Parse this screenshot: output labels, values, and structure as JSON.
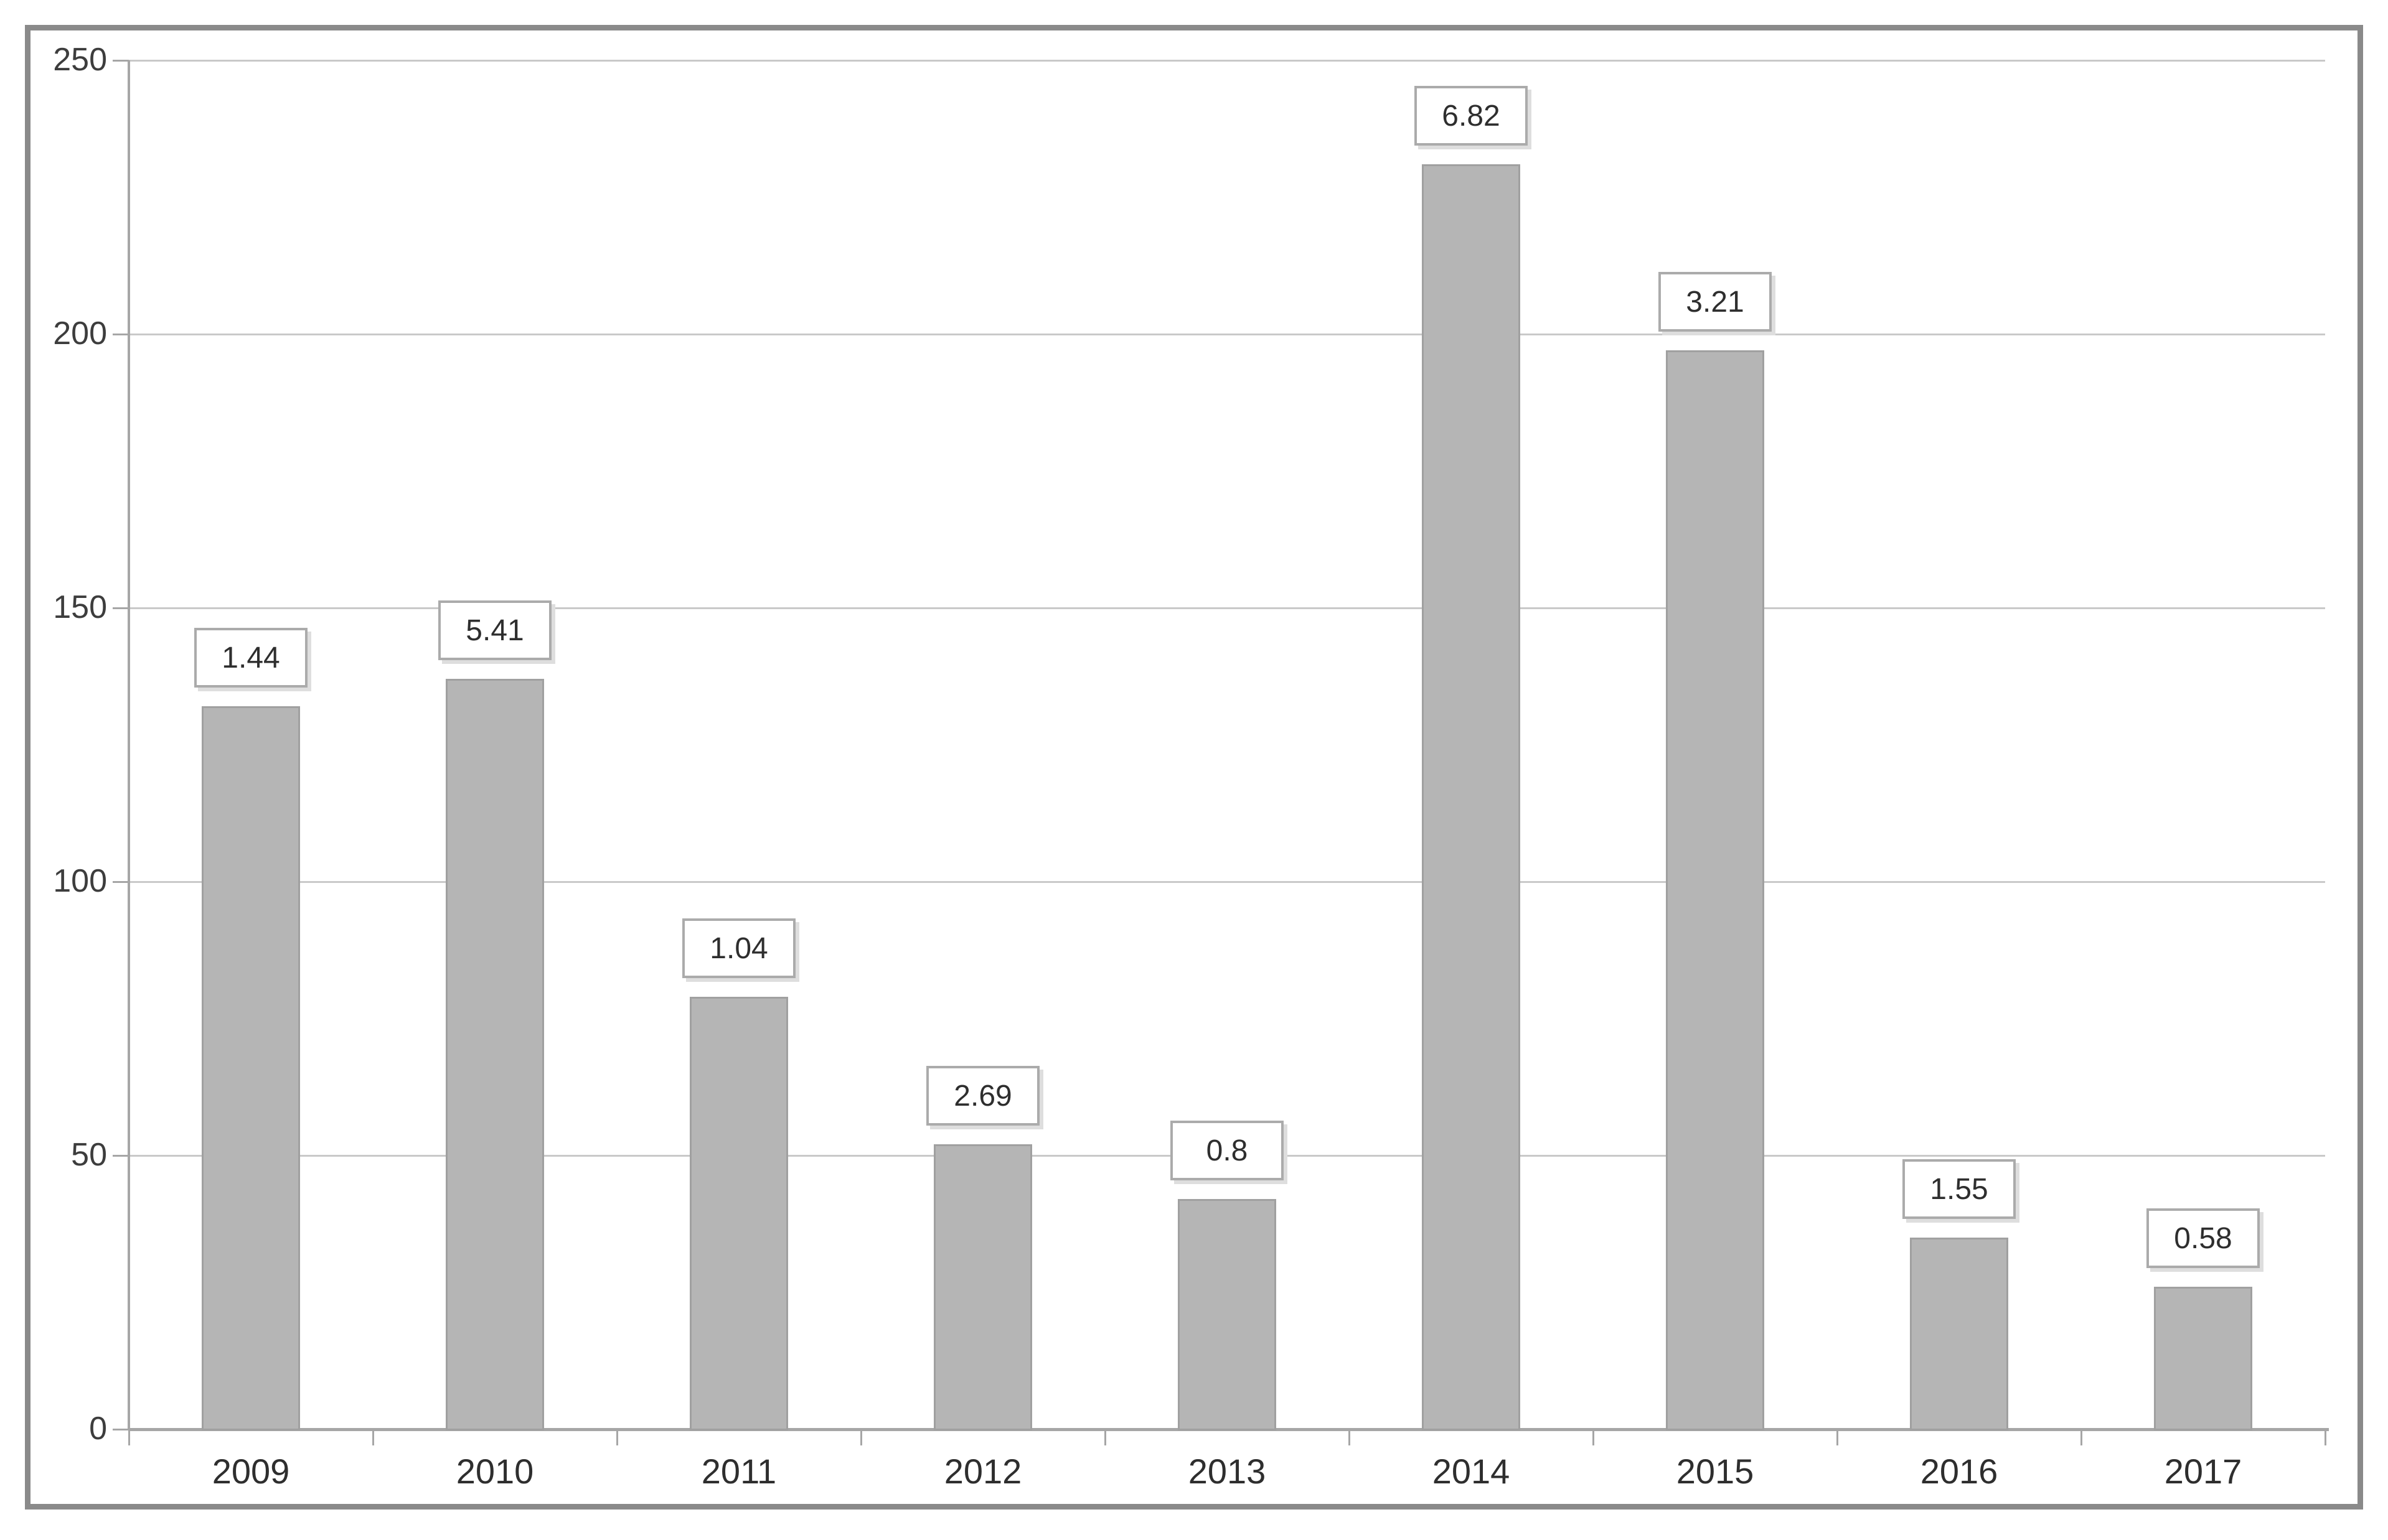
{
  "chart_data": {
    "type": "bar",
    "title": "",
    "xlabel": "",
    "ylabel": "",
    "categories": [
      "2009",
      "2010",
      "2011",
      "2012",
      "2013",
      "2014",
      "2015",
      "2016",
      "2017"
    ],
    "series": [
      {
        "name": "bar_height",
        "values": [
          132,
          137,
          79,
          52,
          42,
          231,
          197,
          35,
          26
        ]
      },
      {
        "name": "data_label_above_bar",
        "values": [
          "1.44",
          "5.41",
          "1.04",
          "2.69",
          "0.8",
          "6.82",
          "3.21",
          "1.55",
          "0.58"
        ]
      }
    ],
    "ylim": [
      0,
      250
    ],
    "yticks": [
      0,
      50,
      100,
      150,
      200,
      250
    ],
    "grid": true,
    "legend": false,
    "colors": {
      "bar_fill": "#b5b5b5",
      "bar_border": "#a0a0a0",
      "gridline": "#c9c9c9",
      "axis": "#a6a6a6",
      "frame_border": "#8a8a8a",
      "background": "#ffffff",
      "text": "#2e2e2e",
      "value_box_bg": "#ffffff",
      "value_box_border": "#ababab"
    }
  }
}
